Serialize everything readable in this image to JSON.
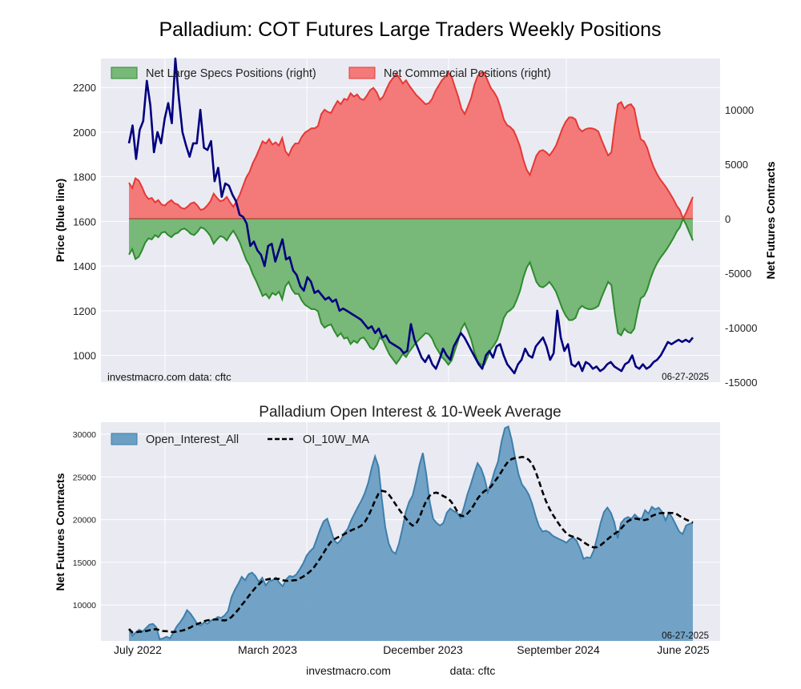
{
  "title": "Palladium: COT Futures Large Traders Weekly Positions",
  "footer": {
    "site": "investmacro.com",
    "source": "data: cftc"
  },
  "chart_data": [
    {
      "type": "area",
      "legend": [
        "Net Large Specs Positions (right)",
        "Net Commercial Positions (right)"
      ],
      "legend_position": "top-left",
      "grid": true,
      "left_axis": {
        "label": "Price (blue line)",
        "range": [
          880,
          2330
        ],
        "ticks": [
          1000,
          1200,
          1400,
          1600,
          1800,
          2000,
          2200
        ]
      },
      "right_axis": {
        "label": "Net Futures Contracts",
        "range": [
          -15000,
          14700
        ],
        "ticks": [
          10000,
          5000,
          0,
          -5000,
          -10000,
          -15000
        ]
      },
      "date_label": "06-27-2025",
      "watermark": "investmacro.com    data: cftc",
      "colors": {
        "specs": "#2e8b2e",
        "specs_fill": "#78b878",
        "commercial": "#e53935",
        "commercial_fill": "#f47a7a",
        "price": "#00007f"
      },
      "series": [
        {
          "name": "Net Large Specs Positions (right)",
          "axis": "right",
          "values": [
            -3300,
            -2800,
            -3700,
            -3500,
            -2900,
            -2200,
            -1800,
            -1900,
            -1500,
            -1700,
            -1300,
            -1200,
            -1500,
            -1700,
            -1400,
            -1300,
            -1000,
            -900,
            -1100,
            -1400,
            -1500,
            -1200,
            -800,
            -900,
            -1200,
            -1600,
            -2300,
            -1900,
            -1600,
            -1700,
            -2000,
            -1500,
            -1100,
            -1600,
            -2200,
            -3000,
            -3800,
            -4300,
            -5100,
            -5700,
            -6400,
            -7100,
            -6900,
            -7300,
            -6800,
            -7000,
            -6700,
            -7400,
            -6200,
            -5800,
            -6500,
            -6900,
            -6900,
            -7500,
            -7900,
            -8100,
            -8300,
            -8300,
            -8500,
            -9600,
            -10000,
            -9800,
            -9700,
            -10300,
            -10800,
            -10500,
            -11000,
            -10900,
            -11500,
            -11200,
            -11400,
            -11000,
            -10900,
            -11300,
            -11800,
            -12000,
            -11600,
            -10900,
            -11200,
            -11900,
            -12500,
            -12900,
            -13300,
            -12900,
            -12400,
            -12700,
            -12200,
            -11800,
            -11400,
            -11100,
            -10800,
            -10500,
            -10600,
            -11000,
            -11700,
            -12200,
            -12700,
            -13000,
            -13400,
            -13000,
            -12100,
            -11200,
            -10100,
            -9600,
            -10300,
            -11100,
            -12300,
            -13100,
            -13400,
            -13400,
            -12700,
            -12000,
            -11600,
            -11100,
            -10200,
            -9100,
            -8600,
            -8400,
            -8100,
            -7400,
            -6600,
            -5400,
            -4500,
            -4000,
            -4900,
            -5800,
            -6200,
            -6300,
            -6100,
            -5800,
            -6200,
            -6700,
            -7500,
            -8300,
            -8900,
            -9300,
            -9300,
            -9100,
            -8300,
            -8000,
            -8200,
            -8300,
            -8300,
            -8200,
            -8000,
            -7200,
            -6500,
            -5800,
            -6100,
            -8500,
            -10500,
            -10700,
            -10100,
            -10400,
            -10500,
            -10100,
            -8600,
            -7300,
            -7100,
            -6500,
            -5500,
            -4700,
            -4100,
            -3600,
            -3200,
            -2800,
            -2300,
            -1800,
            -1200,
            -800,
            0,
            -600,
            -1300,
            -2000
          ],
          "note": "approximate; drawn rescaled from shape (hardcoded fallback)"
        },
        {
          "name": "Net Commercial Positions (right)",
          "axis": "right",
          "note": "mirror of specs"
        },
        {
          "name": "price",
          "axis": "left"
        }
      ]
    },
    {
      "type": "area",
      "title": "Palladium Open Interest & 10-Week Average",
      "ylabel": "Net Futures Contracts",
      "ylim": [
        5800,
        31400
      ],
      "yticks": [
        10000,
        15000,
        20000,
        25000,
        30000
      ],
      "xticks": [
        "July 2022",
        "March 2023",
        "December 2023",
        "September 2024",
        "June 2025"
      ],
      "legend": [
        "Open_Interest_All",
        "OI_10W_MA"
      ],
      "date_label": "06-27-2025",
      "colors": {
        "oi_fill": "#6b9fc4",
        "oi_line": "#3e7fab",
        "ma": "#000000"
      },
      "series": [
        {
          "name": "Open_Interest_All"
        },
        {
          "name": "OI_10W_MA"
        }
      ]
    }
  ]
}
